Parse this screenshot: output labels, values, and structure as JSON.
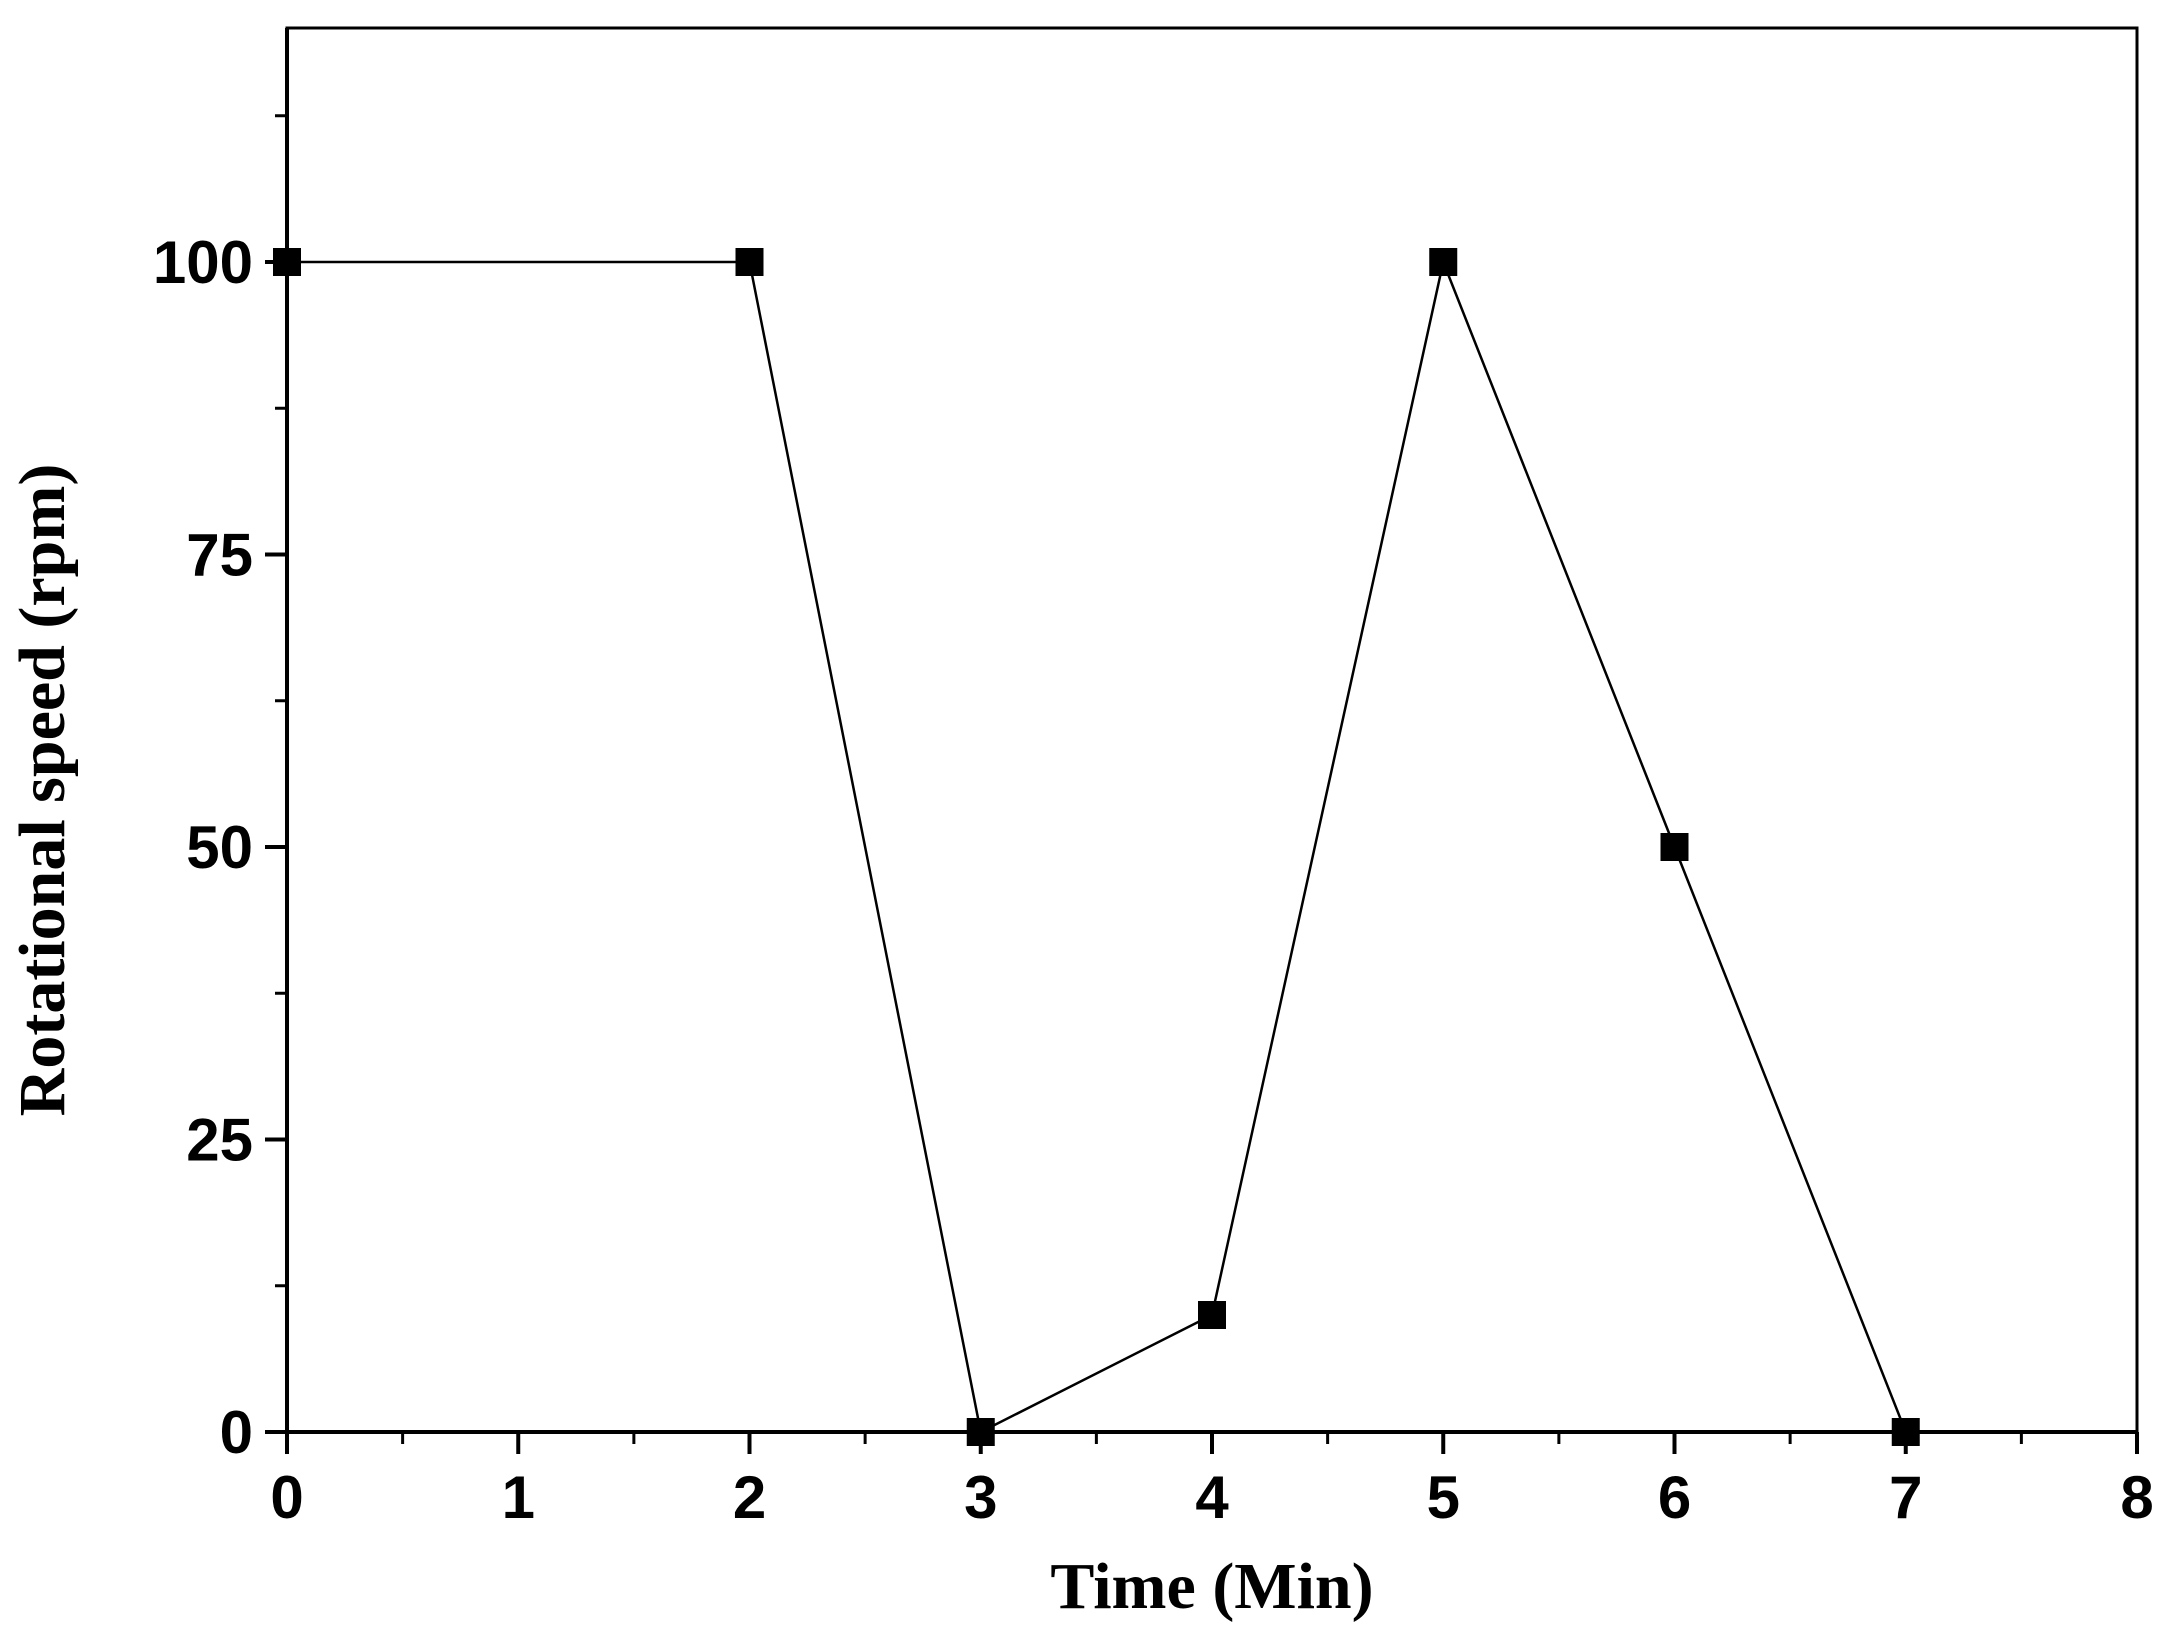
{
  "chart_data": {
    "type": "line",
    "title": "",
    "xlabel": "Time (Min)",
    "ylabel": "Rotational speed (rpm)",
    "xlim": [
      0,
      8
    ],
    "ylim": [
      0,
      120
    ],
    "x_ticks": [
      0,
      1,
      2,
      3,
      4,
      5,
      6,
      7,
      8
    ],
    "x_tick_labels": [
      "0",
      "1",
      "2",
      "3",
      "4",
      "5",
      "6",
      "7",
      "8"
    ],
    "y_ticks": [
      0,
      25,
      50,
      75,
      100
    ],
    "y_tick_labels": [
      "0",
      "25",
      "50",
      "75",
      "100"
    ],
    "grid": false,
    "series": [
      {
        "x": [
          0,
          2,
          3,
          4,
          5,
          6,
          7
        ],
        "values": [
          100,
          100,
          0,
          10,
          100,
          50,
          0
        ],
        "marker": "square",
        "color": "#000000"
      }
    ]
  }
}
